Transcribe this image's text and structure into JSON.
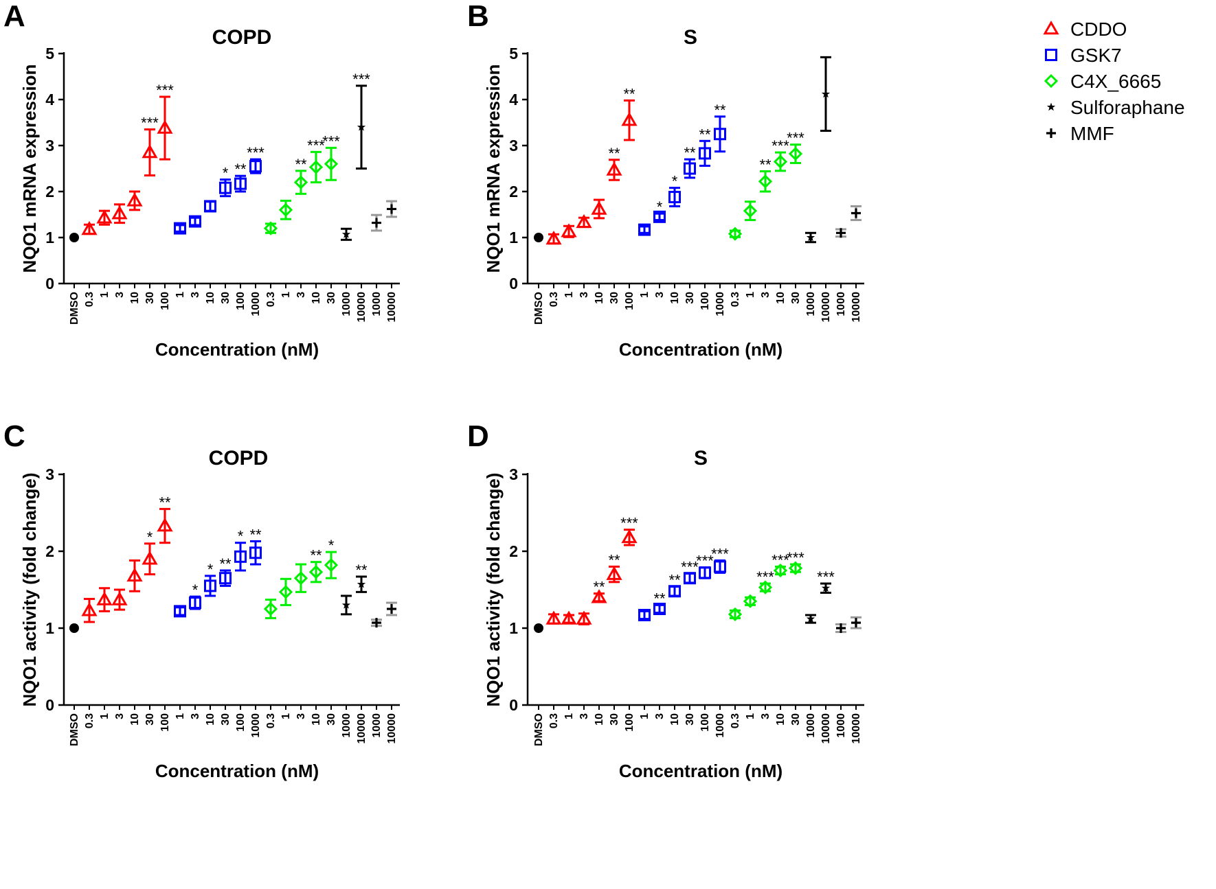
{
  "legend": {
    "items": [
      {
        "label": "CDDO",
        "marker": "triangle",
        "color": "#ff0000"
      },
      {
        "label": "GSK7",
        "marker": "square",
        "color": "#0000ff"
      },
      {
        "label": "C4X_6665",
        "marker": "diamond",
        "color": "#00ee00"
      },
      {
        "label": "Sulforaphane",
        "marker": "star",
        "color": "#000000"
      },
      {
        "label": "MMF",
        "marker": "plus",
        "color": "#000000"
      }
    ]
  },
  "chart_data": [
    {
      "panel": "A",
      "type": "scatter",
      "title": "COPD",
      "ylabel": "NQO1 mRNA expression",
      "xlabel": "Concentration (nM)",
      "ylim": [
        0,
        5
      ],
      "yticks": [
        "0",
        "1",
        "2",
        "3",
        "4",
        "5"
      ],
      "categories": [
        "DMSO",
        "0.3",
        "1",
        "3",
        "10",
        "30",
        "100",
        "1",
        "3",
        "10",
        "30",
        "100",
        "1000",
        "0.3",
        "1",
        "3",
        "10",
        "30",
        "1000",
        "10000",
        "1000",
        "10000"
      ],
      "points": [
        {
          "series": "DMSO",
          "y": 1.0,
          "err": 0,
          "sig": ""
        },
        {
          "series": "CDDO",
          "y": 1.18,
          "err": 0.1,
          "sig": ""
        },
        {
          "series": "CDDO",
          "y": 1.43,
          "err": 0.15,
          "sig": ""
        },
        {
          "series": "CDDO",
          "y": 1.52,
          "err": 0.2,
          "sig": ""
        },
        {
          "series": "CDDO",
          "y": 1.8,
          "err": 0.2,
          "sig": ""
        },
        {
          "series": "CDDO",
          "y": 2.85,
          "err": 0.5,
          "sig": "***"
        },
        {
          "series": "CDDO",
          "y": 3.38,
          "err": 0.68,
          "sig": "***"
        },
        {
          "series": "GSK7",
          "y": 1.2,
          "err": 0.07,
          "sig": ""
        },
        {
          "series": "GSK7",
          "y": 1.35,
          "err": 0.08,
          "sig": ""
        },
        {
          "series": "GSK7",
          "y": 1.68,
          "err": 0.1,
          "sig": ""
        },
        {
          "series": "GSK7",
          "y": 2.08,
          "err": 0.18,
          "sig": "*"
        },
        {
          "series": "GSK7",
          "y": 2.17,
          "err": 0.17,
          "sig": "**"
        },
        {
          "series": "GSK7",
          "y": 2.55,
          "err": 0.15,
          "sig": "***"
        },
        {
          "series": "C4X_6665",
          "y": 1.2,
          "err": 0.1,
          "sig": ""
        },
        {
          "series": "C4X_6665",
          "y": 1.6,
          "err": 0.2,
          "sig": ""
        },
        {
          "series": "C4X_6665",
          "y": 2.2,
          "err": 0.25,
          "sig": "**"
        },
        {
          "series": "C4X_6665",
          "y": 2.53,
          "err": 0.33,
          "sig": "***"
        },
        {
          "series": "C4X_6665",
          "y": 2.6,
          "err": 0.35,
          "sig": "***"
        },
        {
          "series": "Sulforaphane",
          "y": 1.07,
          "err": 0.12,
          "sig": ""
        },
        {
          "series": "Sulforaphane",
          "y": 3.4,
          "err": 0.9,
          "sig": "***"
        },
        {
          "series": "MMF",
          "y": 1.32,
          "err": 0.17,
          "sig": ""
        },
        {
          "series": "MMF",
          "y": 1.62,
          "err": 0.17,
          "sig": ""
        }
      ]
    },
    {
      "panel": "B",
      "type": "scatter",
      "title": "S",
      "ylabel": "NQO1 mRNA expression",
      "xlabel": "Concentration (nM)",
      "ylim": [
        0,
        5
      ],
      "yticks": [
        "0",
        "1",
        "2",
        "3",
        "4",
        "5"
      ],
      "categories": [
        "DMSO",
        "0.3",
        "1",
        "3",
        "10",
        "30",
        "100",
        "1",
        "3",
        "10",
        "30",
        "100",
        "1000",
        "0.3",
        "1",
        "3",
        "10",
        "30",
        "1000",
        "10000",
        "1000",
        "10000"
      ],
      "points": [
        {
          "series": "DMSO",
          "y": 1.0,
          "err": 0,
          "sig": ""
        },
        {
          "series": "CDDO",
          "y": 0.97,
          "err": 0.1,
          "sig": ""
        },
        {
          "series": "CDDO",
          "y": 1.13,
          "err": 0.12,
          "sig": ""
        },
        {
          "series": "CDDO",
          "y": 1.33,
          "err": 0.1,
          "sig": ""
        },
        {
          "series": "CDDO",
          "y": 1.62,
          "err": 0.2,
          "sig": ""
        },
        {
          "series": "CDDO",
          "y": 2.47,
          "err": 0.22,
          "sig": "**"
        },
        {
          "series": "CDDO",
          "y": 3.55,
          "err": 0.43,
          "sig": "**"
        },
        {
          "series": "GSK7",
          "y": 1.17,
          "err": 0.07,
          "sig": ""
        },
        {
          "series": "GSK7",
          "y": 1.45,
          "err": 0.07,
          "sig": "*"
        },
        {
          "series": "GSK7",
          "y": 1.88,
          "err": 0.2,
          "sig": "*"
        },
        {
          "series": "GSK7",
          "y": 2.5,
          "err": 0.2,
          "sig": "**"
        },
        {
          "series": "GSK7",
          "y": 2.83,
          "err": 0.27,
          "sig": "**"
        },
        {
          "series": "GSK7",
          "y": 3.25,
          "err": 0.38,
          "sig": "**"
        },
        {
          "series": "C4X_6665",
          "y": 1.08,
          "err": 0.07,
          "sig": ""
        },
        {
          "series": "C4X_6665",
          "y": 1.58,
          "err": 0.2,
          "sig": ""
        },
        {
          "series": "C4X_6665",
          "y": 2.22,
          "err": 0.22,
          "sig": "**"
        },
        {
          "series": "C4X_6665",
          "y": 2.65,
          "err": 0.2,
          "sig": "***"
        },
        {
          "series": "C4X_6665",
          "y": 2.82,
          "err": 0.2,
          "sig": "***"
        },
        {
          "series": "Sulforaphane",
          "y": 1.0,
          "err": 0.1,
          "sig": ""
        },
        {
          "series": "Sulforaphane",
          "y": 4.12,
          "err": 0.8,
          "sig": ""
        },
        {
          "series": "MMF",
          "y": 1.1,
          "err": 0.08,
          "sig": ""
        },
        {
          "series": "MMF",
          "y": 1.53,
          "err": 0.15,
          "sig": ""
        }
      ]
    },
    {
      "panel": "C",
      "type": "scatter",
      "title": "COPD",
      "ylabel": "NQO1 activity (fold change)",
      "xlabel": "Concentration (nM)",
      "ylim": [
        0,
        3
      ],
      "yticks": [
        "0",
        "1",
        "2",
        "3"
      ],
      "categories": [
        "DMSO",
        "0.3",
        "1",
        "3",
        "10",
        "30",
        "100",
        "1",
        "3",
        "10",
        "30",
        "100",
        "1000",
        "0.3",
        "1",
        "3",
        "10",
        "30",
        "1000",
        "10000",
        "1000",
        "10000"
      ],
      "points": [
        {
          "series": "DMSO",
          "y": 1.0,
          "err": 0,
          "sig": ""
        },
        {
          "series": "CDDO",
          "y": 1.23,
          "err": 0.15,
          "sig": ""
        },
        {
          "series": "CDDO",
          "y": 1.37,
          "err": 0.15,
          "sig": ""
        },
        {
          "series": "CDDO",
          "y": 1.37,
          "err": 0.13,
          "sig": ""
        },
        {
          "series": "CDDO",
          "y": 1.68,
          "err": 0.2,
          "sig": ""
        },
        {
          "series": "CDDO",
          "y": 1.9,
          "err": 0.2,
          "sig": "*"
        },
        {
          "series": "CDDO",
          "y": 2.33,
          "err": 0.22,
          "sig": "**"
        },
        {
          "series": "GSK7",
          "y": 1.22,
          "err": 0.05,
          "sig": ""
        },
        {
          "series": "GSK7",
          "y": 1.33,
          "err": 0.08,
          "sig": "*"
        },
        {
          "series": "GSK7",
          "y": 1.55,
          "err": 0.13,
          "sig": "*"
        },
        {
          "series": "GSK7",
          "y": 1.65,
          "err": 0.1,
          "sig": "**"
        },
        {
          "series": "GSK7",
          "y": 1.93,
          "err": 0.18,
          "sig": "*"
        },
        {
          "series": "GSK7",
          "y": 1.98,
          "err": 0.15,
          "sig": "**"
        },
        {
          "series": "C4X_6665",
          "y": 1.25,
          "err": 0.12,
          "sig": ""
        },
        {
          "series": "C4X_6665",
          "y": 1.47,
          "err": 0.17,
          "sig": ""
        },
        {
          "series": "C4X_6665",
          "y": 1.65,
          "err": 0.18,
          "sig": ""
        },
        {
          "series": "C4X_6665",
          "y": 1.73,
          "err": 0.13,
          "sig": "**"
        },
        {
          "series": "C4X_6665",
          "y": 1.82,
          "err": 0.17,
          "sig": "*"
        },
        {
          "series": "Sulforaphane",
          "y": 1.3,
          "err": 0.12,
          "sig": ""
        },
        {
          "series": "Sulforaphane",
          "y": 1.57,
          "err": 0.1,
          "sig": "**"
        },
        {
          "series": "MMF",
          "y": 1.07,
          "err": 0.04,
          "sig": ""
        },
        {
          "series": "MMF",
          "y": 1.25,
          "err": 0.08,
          "sig": ""
        }
      ]
    },
    {
      "panel": "D",
      "type": "scatter",
      "title": "S",
      "ylabel": "NQO1 activity (fold change)",
      "xlabel": "Concentration (nM)",
      "ylim": [
        0,
        3
      ],
      "yticks": [
        "0",
        "1",
        "2",
        "3"
      ],
      "categories": [
        "DMSO",
        "0.3",
        "1",
        "3",
        "10",
        "30",
        "100",
        "1",
        "3",
        "10",
        "30",
        "100",
        "1000",
        "0.3",
        "1",
        "3",
        "10",
        "30",
        "1000",
        "10000",
        "1000",
        "10000"
      ],
      "points": [
        {
          "series": "DMSO",
          "y": 1.0,
          "err": 0,
          "sig": ""
        },
        {
          "series": "CDDO",
          "y": 1.12,
          "err": 0.06,
          "sig": ""
        },
        {
          "series": "CDDO",
          "y": 1.12,
          "err": 0.05,
          "sig": ""
        },
        {
          "series": "CDDO",
          "y": 1.12,
          "err": 0.07,
          "sig": ""
        },
        {
          "series": "CDDO",
          "y": 1.4,
          "err": 0.05,
          "sig": "**"
        },
        {
          "series": "CDDO",
          "y": 1.7,
          "err": 0.1,
          "sig": "**"
        },
        {
          "series": "CDDO",
          "y": 2.18,
          "err": 0.1,
          "sig": "***"
        },
        {
          "series": "GSK7",
          "y": 1.17,
          "err": 0.05,
          "sig": ""
        },
        {
          "series": "GSK7",
          "y": 1.25,
          "err": 0.05,
          "sig": "**"
        },
        {
          "series": "GSK7",
          "y": 1.48,
          "err": 0.06,
          "sig": "**"
        },
        {
          "series": "GSK7",
          "y": 1.65,
          "err": 0.06,
          "sig": "***"
        },
        {
          "series": "GSK7",
          "y": 1.72,
          "err": 0.07,
          "sig": "***"
        },
        {
          "series": "GSK7",
          "y": 1.8,
          "err": 0.08,
          "sig": "***"
        },
        {
          "series": "C4X_6665",
          "y": 1.18,
          "err": 0.05,
          "sig": ""
        },
        {
          "series": "C4X_6665",
          "y": 1.35,
          "err": 0.05,
          "sig": ""
        },
        {
          "series": "C4X_6665",
          "y": 1.53,
          "err": 0.05,
          "sig": "***"
        },
        {
          "series": "C4X_6665",
          "y": 1.75,
          "err": 0.05,
          "sig": "***"
        },
        {
          "series": "C4X_6665",
          "y": 1.78,
          "err": 0.05,
          "sig": "***"
        },
        {
          "series": "Sulforaphane",
          "y": 1.12,
          "err": 0.05,
          "sig": ""
        },
        {
          "series": "Sulforaphane",
          "y": 1.52,
          "err": 0.06,
          "sig": "***"
        },
        {
          "series": "MMF",
          "y": 1.0,
          "err": 0.05,
          "sig": ""
        },
        {
          "series": "MMF",
          "y": 1.07,
          "err": 0.07,
          "sig": ""
        }
      ]
    }
  ]
}
